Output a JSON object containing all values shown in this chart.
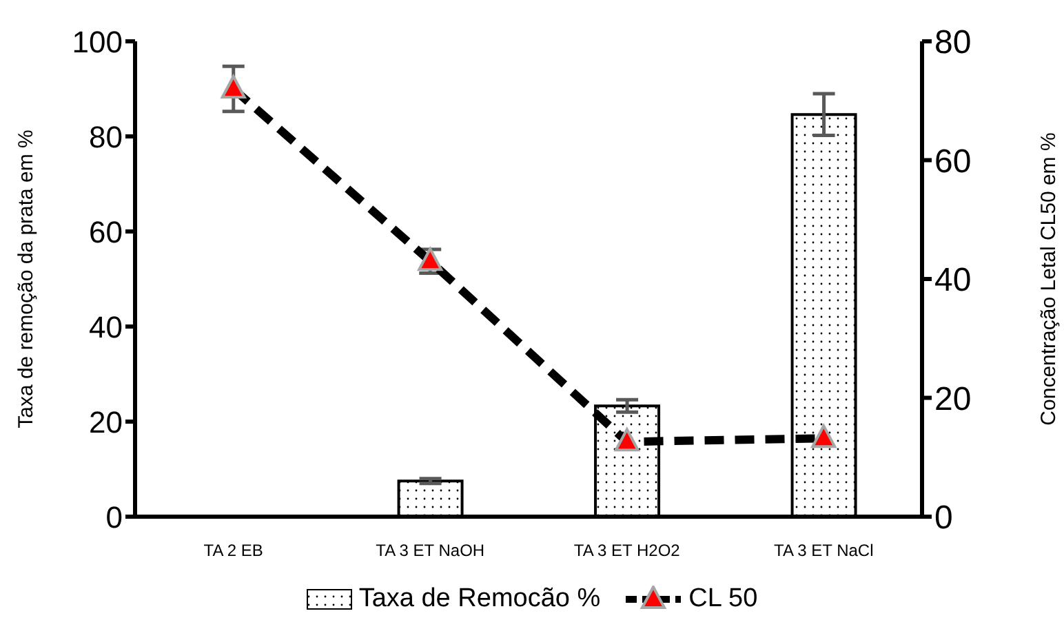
{
  "chart_data": {
    "type": "bar",
    "categories": [
      "TA 2 EB",
      "TA 3 ET  NaOH",
      "TA 3 ET H2O2",
      "TA 3 ET  NaCl"
    ],
    "series": [
      {
        "name": "Taxa de Remocão %",
        "color": "#000000",
        "values": [
          0,
          7.5,
          23.3,
          84.6
        ],
        "errors": [
          null,
          0.5,
          1.3,
          4.4
        ]
      },
      {
        "name": "CL 50",
        "type": "line",
        "axis": "y2",
        "color": "#000000",
        "values": [
          72,
          43,
          12.6,
          13.2
        ],
        "errors": [
          3.8,
          2,
          null,
          null
        ],
        "marker": "triangle",
        "line_style": "dashed"
      }
    ],
    "ylabel": "Taxa de remoção da prata em %",
    "y2label": "Concentração  Letal CL50 em %",
    "ylim": [
      0,
      100
    ],
    "yticks": [
      0,
      20,
      40,
      60,
      80,
      100
    ],
    "y2lim": [
      0,
      80
    ],
    "y2ticks": [
      0,
      20,
      40,
      60,
      80
    ],
    "grid": false,
    "legend": "bottom"
  }
}
